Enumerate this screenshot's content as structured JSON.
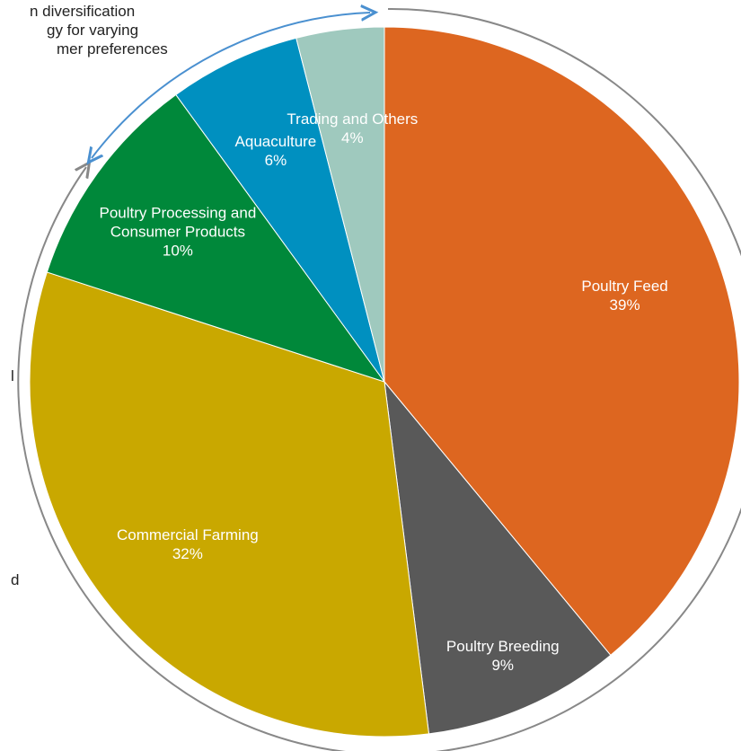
{
  "chart_data": {
    "type": "pie",
    "categories": [
      "Poultry Feed",
      "Poultry Breeding",
      "Commercial Farming",
      "Poultry Processing and Consumer Products",
      "Aquaculture",
      "Trading and Others"
    ],
    "values": [
      39,
      9,
      32,
      10,
      6,
      4
    ],
    "value_labels": [
      "39%",
      "9%",
      "32%",
      "10%",
      "6%",
      "4%"
    ],
    "colors": [
      "#dd6620",
      "#595959",
      "#c9a800",
      "#00883a",
      "#0090c0",
      "#9fc9be"
    ],
    "annotations": [
      "n diversification",
      "gy for varying",
      "mer preferences",
      "l",
      "d"
    ]
  }
}
